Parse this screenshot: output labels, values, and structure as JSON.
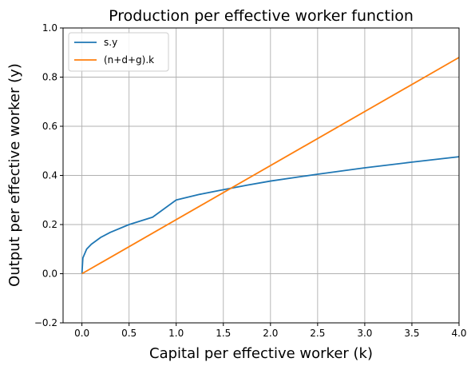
{
  "chart_data": {
    "type": "line",
    "title": "Production per effective worker function",
    "xlabel": "Capital per effective worker (k)",
    "ylabel": "Output per effective worker (y)",
    "xlim": [
      -0.2,
      4.0
    ],
    "ylim": [
      -0.2,
      1.0
    ],
    "xticks": [
      0.0,
      0.5,
      1.0,
      1.5,
      2.0,
      2.5,
      3.0,
      3.5,
      4.0
    ],
    "xtick_labels": [
      "0.0",
      "0.5",
      "1.0",
      "1.5",
      "2.0",
      "2.5",
      "3.0",
      "3.5",
      "4.0"
    ],
    "yticks": [
      -0.2,
      0.0,
      0.2,
      0.4,
      0.6,
      0.8,
      1.0
    ],
    "ytick_labels": [
      "−0.2",
      "0.0",
      "0.2",
      "0.4",
      "0.6",
      "0.8",
      "1.0"
    ],
    "grid": true,
    "legend": "top-left",
    "series": [
      {
        "name": "s.y",
        "color": "#1f77b4",
        "x": [
          0,
          0.01,
          0.05,
          0.1,
          0.2,
          0.3,
          0.5,
          0.75,
          1.0,
          1.25,
          1.5,
          1.75,
          2.0,
          2.5,
          3.0,
          3.5,
          4.0
        ],
        "y": [
          0,
          0.064,
          0.1,
          0.12,
          0.148,
          0.168,
          0.2,
          0.23,
          0.3,
          0.323,
          0.342,
          0.36,
          0.377,
          0.405,
          0.431,
          0.454,
          0.476
        ]
      },
      {
        "name": "(n+d+g).k",
        "color": "#ff7f0e",
        "x": [
          0,
          4.0
        ],
        "y": [
          0,
          0.88
        ]
      }
    ]
  }
}
